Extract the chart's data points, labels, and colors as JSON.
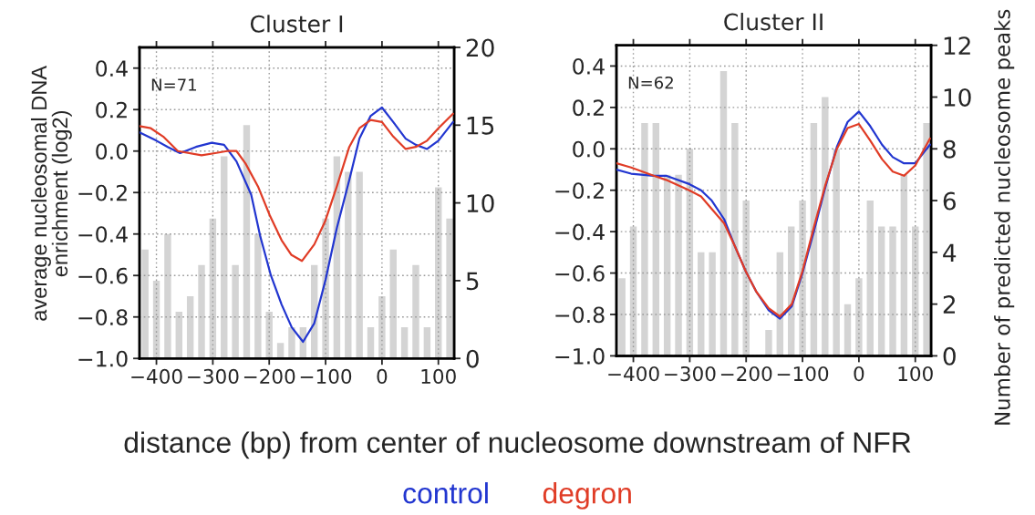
{
  "chart_data": [
    {
      "type": "line",
      "title": "Cluster I",
      "ylabel": "average nucleosomal DNA\nenrichment (log2)",
      "xlabel": "distance (bp) from center of nucleosome downstream of NFR",
      "annotations": [
        "N=71"
      ],
      "xlim": [
        -430,
        128
      ],
      "xticks": [
        {
          "value": -400,
          "label": "−400"
        },
        {
          "value": -300,
          "label": "−300"
        },
        {
          "value": -200,
          "label": "−200"
        },
        {
          "value": -100,
          "label": "−100"
        },
        0,
        100
      ],
      "ylim": [
        -1.0,
        0.5
      ],
      "yticks": [
        {
          "value": -1.0,
          "label": "−1.0"
        },
        {
          "value": -0.8,
          "label": "−0.8"
        },
        {
          "value": -0.6,
          "label": "−0.6"
        },
        {
          "value": -0.4,
          "label": "−0.4"
        },
        {
          "value": -0.2,
          "label": "−0.2"
        },
        {
          "value": 0,
          "label": "0.0"
        },
        {
          "value": 0.2,
          "label": "0.2"
        },
        {
          "value": 0.4,
          "label": "0.4"
        }
      ],
      "y2lim": [
        0,
        20
      ],
      "y2ticks": [
        0,
        5,
        10,
        15,
        20
      ],
      "grid": true,
      "legend": "bottom",
      "series": [
        {
          "type": "bar",
          "axis": "y2",
          "color": "#d4d4d4",
          "x": [
            -420,
            -400,
            -380,
            -360,
            -340,
            -320,
            -300,
            -280,
            -260,
            -240,
            -220,
            -200,
            -180,
            -160,
            -140,
            -120,
            -100,
            -80,
            -60,
            -40,
            -20,
            0,
            20,
            40,
            60,
            80,
            100,
            120
          ],
          "values": [
            7,
            5,
            8,
            3,
            4,
            6,
            9,
            13,
            6,
            15,
            8,
            3,
            1,
            2,
            2,
            6,
            9,
            13,
            12,
            12,
            2,
            4,
            7,
            2,
            6,
            2,
            11,
            9
          ]
        },
        {
          "name": "control",
          "color": "#2236d0",
          "x": [
            -430,
            -400,
            -380,
            -358,
            -330,
            -302,
            -280,
            -258,
            -232,
            -216,
            -197,
            -178,
            -160,
            -140,
            -120,
            -100,
            -80,
            -58,
            -40,
            -20,
            0,
            20,
            42,
            60,
            80,
            100,
            126
          ],
          "values": [
            0.09,
            0.05,
            0.02,
            -0.01,
            0.02,
            0.04,
            0.03,
            -0.05,
            -0.21,
            -0.41,
            -0.6,
            -0.74,
            -0.85,
            -0.92,
            -0.83,
            -0.62,
            -0.37,
            -0.14,
            0.06,
            0.17,
            0.21,
            0.14,
            0.06,
            0.03,
            0.01,
            0.05,
            0.14
          ]
        },
        {
          "name": "degron",
          "color": "#e03c26",
          "x": [
            -430,
            -410,
            -388,
            -362,
            -320,
            -296,
            -275,
            -258,
            -242,
            -220,
            -199,
            -178,
            -161,
            -142,
            -120,
            -101,
            -80,
            -58,
            -40,
            -20,
            0,
            20,
            42,
            60,
            80,
            100,
            126
          ],
          "values": [
            0.12,
            0.11,
            0.07,
            0.0,
            -0.02,
            -0.01,
            0.0,
            0.0,
            -0.06,
            -0.17,
            -0.31,
            -0.43,
            -0.5,
            -0.53,
            -0.45,
            -0.34,
            -0.17,
            0.02,
            0.11,
            0.15,
            0.14,
            0.07,
            0.01,
            0.02,
            0.05,
            0.11,
            0.18
          ]
        }
      ]
    },
    {
      "type": "line",
      "title": "Cluster II",
      "y2label": "Number of predicted nucleosome peaks",
      "annotations": [
        "N=62"
      ],
      "xlim": [
        -430,
        128
      ],
      "xticks": [
        {
          "value": -400,
          "label": "−400"
        },
        {
          "value": -300,
          "label": "−300"
        },
        {
          "value": -200,
          "label": "−200"
        },
        {
          "value": -100,
          "label": "−100"
        },
        0,
        100
      ],
      "ylim": [
        -1.0,
        0.5
      ],
      "yticks": [
        {
          "value": -1.0,
          "label": "−1.0"
        },
        {
          "value": -0.8,
          "label": "−0.8"
        },
        {
          "value": -0.6,
          "label": "−0.6"
        },
        {
          "value": -0.4,
          "label": "−0.4"
        },
        {
          "value": -0.2,
          "label": "−0.2"
        },
        {
          "value": 0,
          "label": "0.0"
        },
        {
          "value": 0.2,
          "label": "0.2"
        },
        {
          "value": 0.4,
          "label": "0.4"
        }
      ],
      "y2lim": [
        0,
        12
      ],
      "y2ticks": [
        0,
        2,
        4,
        6,
        8,
        10,
        12
      ],
      "grid": true,
      "series": [
        {
          "type": "bar",
          "axis": "y2",
          "color": "#d4d4d4",
          "x": [
            -420,
            -400,
            -380,
            -360,
            -340,
            -320,
            -300,
            -280,
            -260,
            -240,
            -220,
            -200,
            -180,
            -160,
            -140,
            -120,
            -100,
            -80,
            -60,
            -40,
            -20,
            0,
            20,
            40,
            60,
            80,
            100,
            120
          ],
          "values": [
            3,
            5,
            9,
            9,
            7,
            7,
            8,
            4,
            4,
            11,
            9,
            6,
            0,
            1,
            4,
            5,
            6,
            9,
            10,
            8,
            2,
            3,
            6,
            5,
            5,
            7,
            5,
            9
          ]
        },
        {
          "color": "#2236d0",
          "x": [
            -430,
            -404,
            -364,
            -342,
            -301,
            -280,
            -261,
            -239,
            -220,
            -201,
            -182,
            -160,
            -140,
            -119,
            -100,
            -80,
            -60,
            -39,
            -20,
            0,
            20,
            41,
            60,
            80,
            100,
            126
          ],
          "values": [
            -0.1,
            -0.12,
            -0.13,
            -0.13,
            -0.17,
            -0.2,
            -0.25,
            -0.34,
            -0.47,
            -0.59,
            -0.69,
            -0.78,
            -0.82,
            -0.76,
            -0.6,
            -0.4,
            -0.19,
            0.01,
            0.13,
            0.18,
            0.11,
            0.02,
            -0.04,
            -0.07,
            -0.07,
            0.02
          ]
        },
        {
          "color": "#e03c26",
          "x": [
            -430,
            -404,
            -364,
            -342,
            -301,
            -280,
            -261,
            -239,
            -220,
            -201,
            -182,
            -160,
            -140,
            -119,
            -100,
            -80,
            -60,
            -39,
            -20,
            0,
            20,
            41,
            60,
            80,
            100,
            126
          ],
          "values": [
            -0.07,
            -0.09,
            -0.13,
            -0.15,
            -0.2,
            -0.23,
            -0.29,
            -0.36,
            -0.47,
            -0.59,
            -0.69,
            -0.77,
            -0.81,
            -0.75,
            -0.59,
            -0.38,
            -0.18,
            0.0,
            0.1,
            0.12,
            0.04,
            -0.05,
            -0.11,
            -0.13,
            -0.08,
            0.05
          ]
        }
      ]
    }
  ]
}
